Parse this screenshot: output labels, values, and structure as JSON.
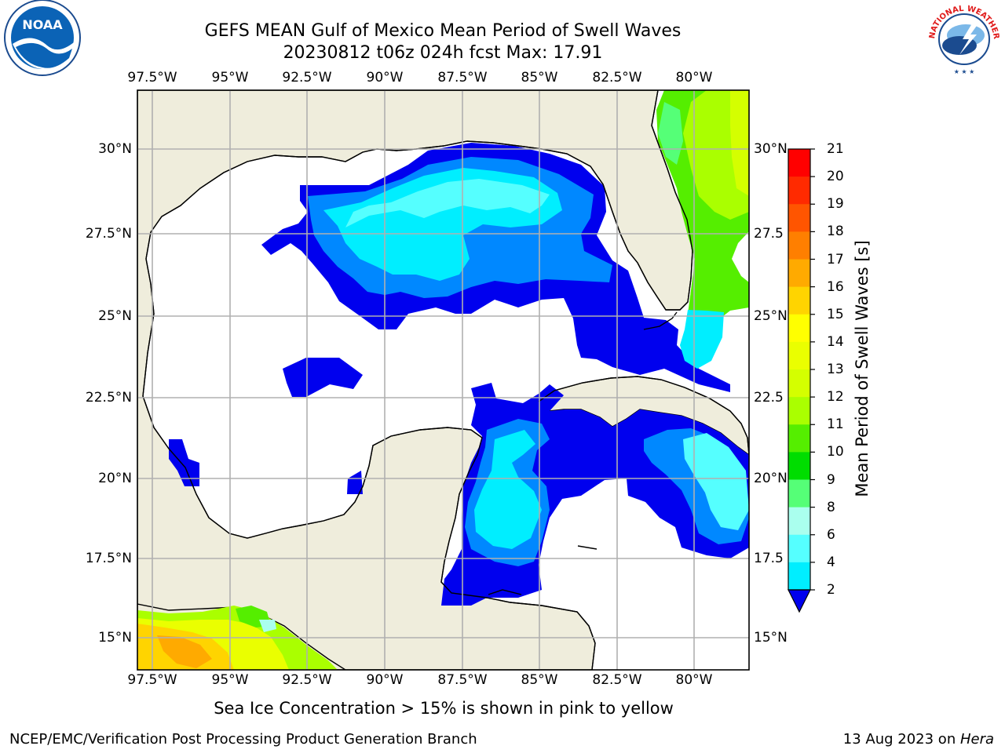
{
  "title": {
    "line1": "GEFS MEAN Gulf of Mexico Mean Period of Swell Waves",
    "line2": "20230812 t06z 024h fcst   Max: 17.91"
  },
  "axes": {
    "lon_ticks": [
      "97.5°W",
      "95°W",
      "92.5°W",
      "90°W",
      "87.5°W",
      "85°W",
      "82.5°W",
      "80°W"
    ],
    "lat_ticks_left": [
      "30°N",
      "27.5°N",
      "25°N",
      "22.5°N",
      "20°N",
      "17.5°N",
      "15°N"
    ],
    "lat_ticks_right": [
      "30°N",
      "27.5",
      "25°N",
      "22.5",
      "20°N",
      "17.5",
      "15°N"
    ],
    "lon_range": [
      -98,
      -78.2
    ],
    "lat_range": [
      14,
      31.8
    ]
  },
  "colorbar": {
    "label": "Mean Period of Swell Waves [s]",
    "ticks": [
      "21",
      "20",
      "19",
      "18",
      "17",
      "16",
      "15",
      "14",
      "13",
      "12",
      "11",
      "10",
      "9",
      "8",
      "6",
      "4",
      "2"
    ],
    "colors": [
      "#ff0000",
      "#ff2a00",
      "#ff5500",
      "#ff7f00",
      "#ffaa00",
      "#ffd400",
      "#ffff00",
      "#eaff00",
      "#d4ff00",
      "#aaff00",
      "#55ee00",
      "#00dd00",
      "#55ff77",
      "#aaffee",
      "#55ffff",
      "#00eeff",
      "#0088ff",
      "#0000ee"
    ]
  },
  "footer": {
    "subtitle": "Sea Ice Concentration > 15% is shown in pink to yellow",
    "left": "NCEP/EMC/Verification Post Processing Product Generation Branch",
    "date": "13 Aug 2023 on ",
    "host": "Hera"
  },
  "logos": {
    "noaa_text": "NOAA",
    "nws_text": "NATIONAL WEATHER SERVICE"
  },
  "colors": {
    "land": "#efeddc",
    "water": "#ffffff",
    "grid": "#b0b0b0"
  }
}
